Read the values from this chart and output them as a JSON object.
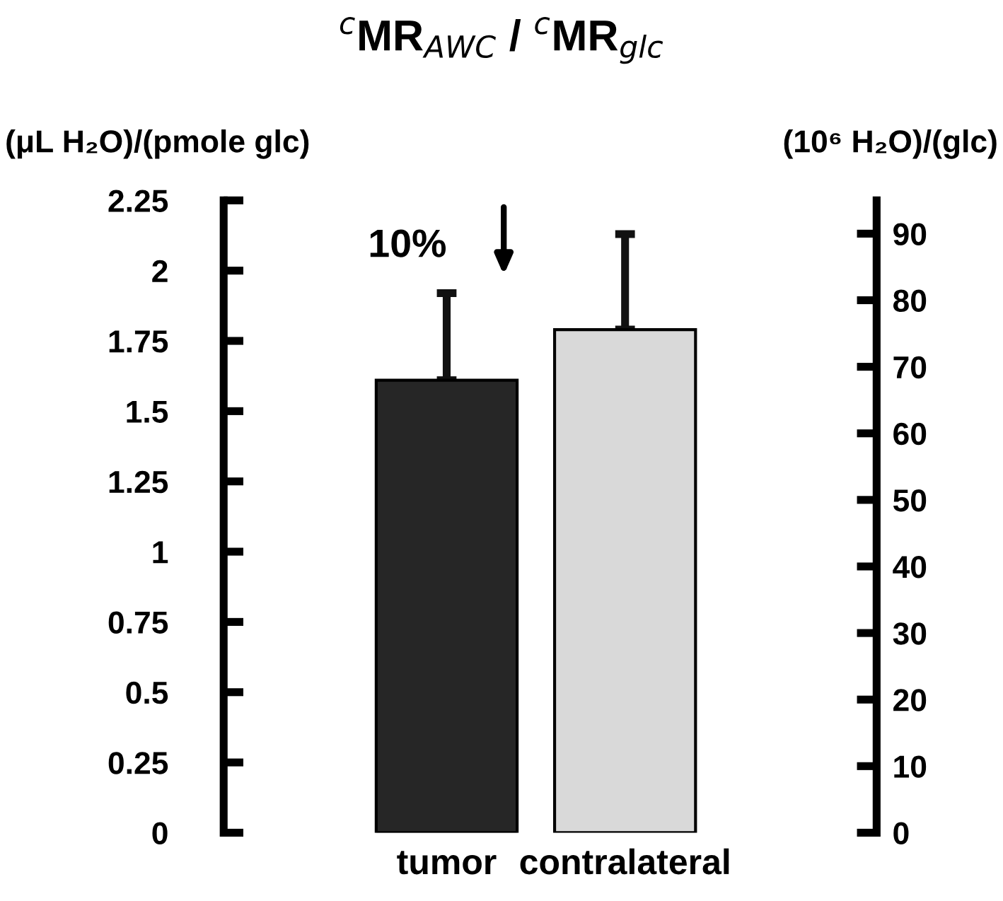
{
  "chart_data": {
    "type": "bar",
    "title": "$^{c}$MR$_{AWC}$ / $^{c}$MR$_{glc}$",
    "ylabel": "(μL H₂O)/(pmole glc)",
    "y2label": "(10⁶ H₂O)/(glc)",
    "categories": [
      "tumor",
      "contralateral"
    ],
    "values": [
      1.61,
      1.79
    ],
    "colors": [
      "#262626",
      "#d9d9d9"
    ],
    "errors": [
      [
        1.61,
        1.92
      ],
      [
        1.79,
        2.13
      ]
    ],
    "ylim": [
      0,
      2.25
    ],
    "yticks": [
      0,
      0.25,
      0.5,
      0.75,
      1,
      1.25,
      1.5,
      1.75,
      2,
      2.25
    ],
    "y2lim": [
      0,
      95
    ],
    "y2ticks": [
      0,
      10,
      20,
      30,
      40,
      50,
      60,
      70,
      80,
      90
    ],
    "annotations": [
      "10%"
    ],
    "grid": false,
    "legend": false
  }
}
